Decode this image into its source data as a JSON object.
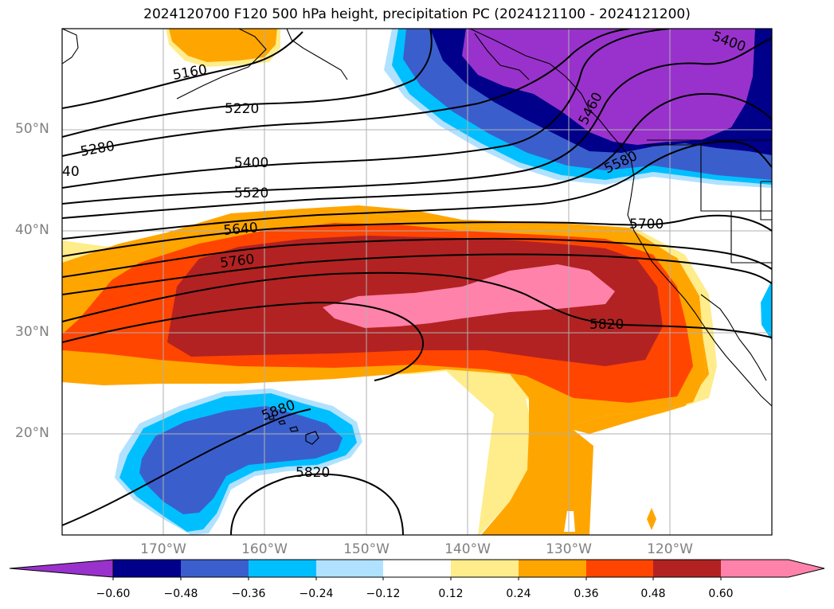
{
  "title": "2024120700 F120 500 hPa height, precipitation PC (2024121100 - 2024121200)",
  "axes": {
    "lat_labels": [
      "50°N",
      "40°N",
      "30°N",
      "20°N"
    ],
    "lon_labels": [
      "170°W",
      "160°W",
      "150°W",
      "140°W",
      "130°W",
      "120°W"
    ],
    "lat_range": [
      10,
      60
    ],
    "lon_range": [
      -180,
      -110
    ],
    "grid": true
  },
  "contour_labels": [
    "5160",
    "5220",
    "5280",
    "40",
    "5400",
    "5520",
    "5640",
    "5760",
    "5820",
    "5880",
    "5820",
    "5700",
    "5400",
    "5460",
    "5580"
  ],
  "colorbar": {
    "ticks": [
      "−0.60",
      "−0.48",
      "−0.36",
      "−0.24",
      "−0.12",
      "0.12",
      "0.24",
      "0.36",
      "0.48",
      "0.60"
    ],
    "colors": [
      "#9932cc",
      "#00008b",
      "#3a5fcd",
      "#00bfff",
      "#b0e2ff",
      "#ffffff",
      "#ffec8b",
      "#ffa500",
      "#ff4500",
      "#b22222",
      "#ff82ab"
    ],
    "extend": "both"
  }
}
